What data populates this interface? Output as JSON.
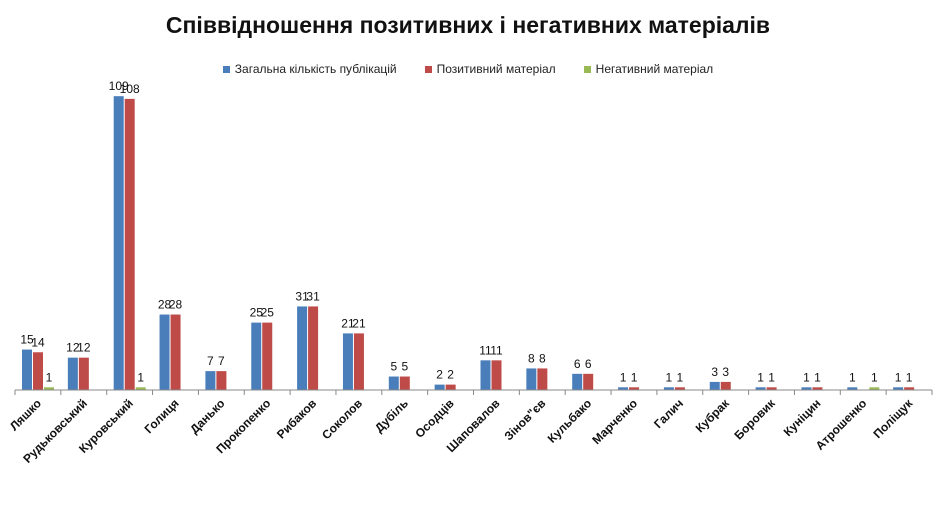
{
  "chart_data": {
    "type": "bar",
    "title": "Співвідношення позитивних і негативних матеріалів",
    "categories": [
      "Ляшко",
      "Рудьковський",
      "Куровський",
      "Голиця",
      "Данько",
      "Прокопенко",
      "Рибаков",
      "Соколов",
      "Дубіль",
      "Осодців",
      "Шаповалов",
      "Зінов\"єв",
      "Кульбако",
      "Марченко",
      "Галич",
      "Кубрак",
      "Боровик",
      "Куніцин",
      "Атрошенко",
      "Поліщук"
    ],
    "series": [
      {
        "name": "Загальна кількість публікацій",
        "color": "#4a7ebb",
        "values": [
          15,
          12,
          109,
          28,
          7,
          25,
          31,
          21,
          5,
          2,
          11,
          8,
          6,
          1,
          1,
          3,
          1,
          1,
          1,
          1
        ]
      },
      {
        "name": "Позитивний матеріал",
        "color": "#be4b48",
        "values": [
          14,
          12,
          108,
          28,
          7,
          25,
          31,
          21,
          5,
          2,
          11,
          8,
          6,
          1,
          1,
          3,
          1,
          1,
          null,
          1
        ]
      },
      {
        "name": "Негативний матеріал",
        "color": "#98b954",
        "values": [
          1,
          null,
          1,
          null,
          null,
          null,
          null,
          null,
          null,
          null,
          null,
          null,
          null,
          null,
          null,
          null,
          null,
          null,
          1,
          null
        ]
      }
    ],
    "ylim": [
      0,
      115
    ],
    "grid": false,
    "legend_position": "top"
  }
}
